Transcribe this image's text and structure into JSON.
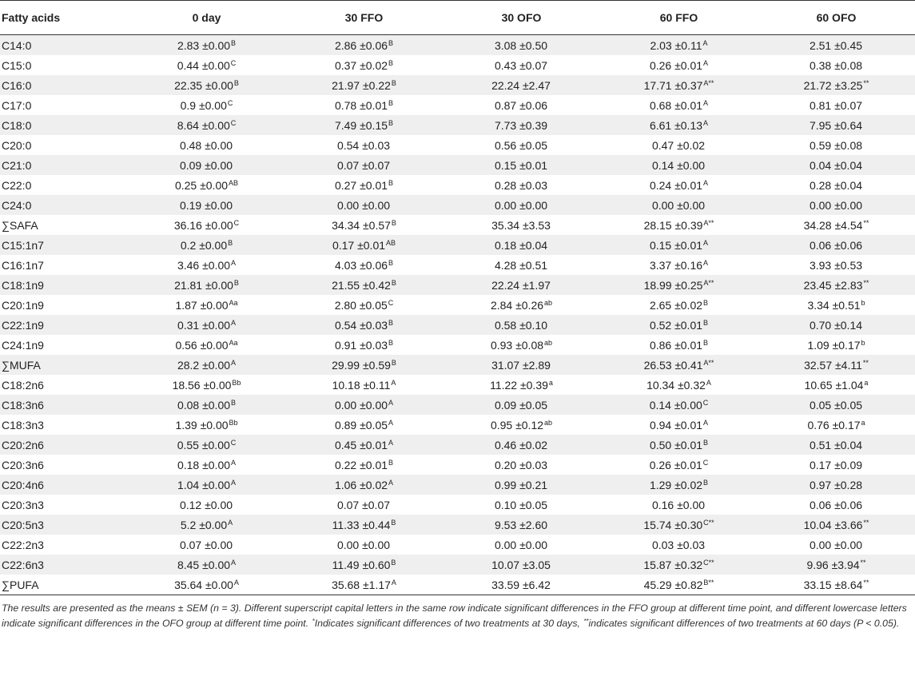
{
  "header": [
    "Fatty acids",
    "0 day",
    "30 FFO",
    "30 OFO",
    "60 FFO",
    "60 OFO"
  ],
  "rows": [
    {
      "name": "C14:0",
      "cells": [
        [
          "2.83 ±0.00",
          "B"
        ],
        [
          "2.86 ±0.06",
          "B"
        ],
        [
          "3.08 ±0.50",
          ""
        ],
        [
          "2.03 ±0.11",
          "A"
        ],
        [
          "2.51 ±0.45",
          ""
        ]
      ]
    },
    {
      "name": "C15:0",
      "cells": [
        [
          "0.44 ±0.00",
          "C"
        ],
        [
          "0.37 ±0.02",
          "B"
        ],
        [
          "0.43 ±0.07",
          ""
        ],
        [
          "0.26 ±0.01",
          "A"
        ],
        [
          "0.38 ±0.08",
          ""
        ]
      ]
    },
    {
      "name": "C16:0",
      "cells": [
        [
          "22.35 ±0.00",
          "B"
        ],
        [
          "21.97 ±0.22",
          "B"
        ],
        [
          "22.24 ±2.47",
          ""
        ],
        [
          "17.71 ±0.37",
          "A**"
        ],
        [
          "21.72 ±3.25",
          "**"
        ]
      ]
    },
    {
      "name": "C17:0",
      "cells": [
        [
          "0.9 ±0.00",
          "C"
        ],
        [
          "0.78 ±0.01",
          "B"
        ],
        [
          "0.87 ±0.06",
          ""
        ],
        [
          "0.68 ±0.01",
          "A"
        ],
        [
          "0.81 ±0.07",
          ""
        ]
      ]
    },
    {
      "name": "C18:0",
      "cells": [
        [
          "8.64 ±0.00",
          "C"
        ],
        [
          "7.49 ±0.15",
          "B"
        ],
        [
          "7.73 ±0.39",
          ""
        ],
        [
          "6.61 ±0.13",
          "A"
        ],
        [
          "7.95 ±0.64",
          ""
        ]
      ]
    },
    {
      "name": "C20:0",
      "cells": [
        [
          "0.48 ±0.00",
          ""
        ],
        [
          "0.54 ±0.03",
          ""
        ],
        [
          "0.56 ±0.05",
          ""
        ],
        [
          "0.47 ±0.02",
          ""
        ],
        [
          "0.59 ±0.08",
          ""
        ]
      ]
    },
    {
      "name": "C21:0",
      "cells": [
        [
          "0.09 ±0.00",
          ""
        ],
        [
          "0.07 ±0.07",
          ""
        ],
        [
          "0.15 ±0.01",
          ""
        ],
        [
          "0.14 ±0.00",
          ""
        ],
        [
          "0.04 ±0.04",
          ""
        ]
      ]
    },
    {
      "name": "C22:0",
      "cells": [
        [
          "0.25 ±0.00",
          "AB"
        ],
        [
          "0.27 ±0.01",
          "B"
        ],
        [
          "0.28 ±0.03",
          ""
        ],
        [
          "0.24 ±0.01",
          "A"
        ],
        [
          "0.28 ±0.04",
          ""
        ]
      ]
    },
    {
      "name": "C24:0",
      "cells": [
        [
          "0.19 ±0.00",
          ""
        ],
        [
          "0.00 ±0.00",
          ""
        ],
        [
          "0.00 ±0.00",
          ""
        ],
        [
          "0.00 ±0.00",
          ""
        ],
        [
          "0.00 ±0.00",
          ""
        ]
      ]
    },
    {
      "name": "∑SAFA",
      "cells": [
        [
          "36.16 ±0.00",
          "C"
        ],
        [
          "34.34 ±0.57",
          "B"
        ],
        [
          "35.34 ±3.53",
          ""
        ],
        [
          "28.15 ±0.39",
          "A**"
        ],
        [
          "34.28 ±4.54",
          "**"
        ]
      ]
    },
    {
      "name": "C15:1n7",
      "cells": [
        [
          "0.2 ±0.00",
          "B"
        ],
        [
          "0.17 ±0.01",
          "AB"
        ],
        [
          "0.18 ±0.04",
          ""
        ],
        [
          "0.15 ±0.01",
          "A"
        ],
        [
          "0.06 ±0.06",
          ""
        ]
      ]
    },
    {
      "name": "C16:1n7",
      "cells": [
        [
          "3.46 ±0.00",
          "A"
        ],
        [
          "4.03 ±0.06",
          "B"
        ],
        [
          "4.28 ±0.51",
          ""
        ],
        [
          "3.37 ±0.16",
          "A"
        ],
        [
          "3.93 ±0.53",
          ""
        ]
      ]
    },
    {
      "name": "C18:1n9",
      "cells": [
        [
          "21.81 ±0.00",
          "B"
        ],
        [
          "21.55 ±0.42",
          "B"
        ],
        [
          "22.24 ±1.97",
          ""
        ],
        [
          "18.99 ±0.25",
          "A**"
        ],
        [
          "23.45 ±2.83",
          "**"
        ]
      ]
    },
    {
      "name": "C20:1n9",
      "cells": [
        [
          "1.87 ±0.00",
          "Aa"
        ],
        [
          "2.80 ±0.05",
          "C"
        ],
        [
          "2.84 ±0.26",
          "ab"
        ],
        [
          "2.65 ±0.02",
          "B"
        ],
        [
          "3.34 ±0.51",
          "b"
        ]
      ]
    },
    {
      "name": "C22:1n9",
      "cells": [
        [
          "0.31 ±0.00",
          "A"
        ],
        [
          "0.54 ±0.03",
          "B"
        ],
        [
          "0.58 ±0.10",
          ""
        ],
        [
          "0.52 ±0.01",
          "B"
        ],
        [
          "0.70 ±0.14",
          ""
        ]
      ]
    },
    {
      "name": "C24:1n9",
      "cells": [
        [
          "0.56 ±0.00",
          "Aa"
        ],
        [
          "0.91 ±0.03",
          "B"
        ],
        [
          "0.93 ±0.08",
          "ab"
        ],
        [
          "0.86 ±0.01",
          "B"
        ],
        [
          "1.09 ±0.17",
          "b"
        ]
      ]
    },
    {
      "name": "∑MUFA",
      "cells": [
        [
          "28.2 ±0.00",
          "A"
        ],
        [
          "29.99 ±0.59",
          "B"
        ],
        [
          "31.07 ±2.89",
          ""
        ],
        [
          "26.53 ±0.41",
          "A**"
        ],
        [
          "32.57 ±4.11",
          "**"
        ]
      ]
    },
    {
      "name": "C18:2n6",
      "cells": [
        [
          "18.56 ±0.00",
          "Bb"
        ],
        [
          "10.18 ±0.11",
          "A"
        ],
        [
          "11.22 ±0.39",
          "a"
        ],
        [
          "10.34 ±0.32",
          "A"
        ],
        [
          "10.65 ±1.04",
          "a"
        ]
      ]
    },
    {
      "name": "C18:3n6",
      "cells": [
        [
          "0.08 ±0.00",
          "B"
        ],
        [
          "0.00 ±0.00",
          "A"
        ],
        [
          "0.09 ±0.05",
          ""
        ],
        [
          "0.14 ±0.00",
          "C"
        ],
        [
          "0.05 ±0.05",
          ""
        ]
      ]
    },
    {
      "name": "C18:3n3",
      "cells": [
        [
          "1.39 ±0.00",
          "Bb"
        ],
        [
          "0.89 ±0.05",
          "A"
        ],
        [
          "0.95 ±0.12",
          "ab"
        ],
        [
          "0.94 ±0.01",
          "A"
        ],
        [
          "0.76 ±0.17",
          "a"
        ]
      ]
    },
    {
      "name": "C20:2n6",
      "cells": [
        [
          "0.55 ±0.00",
          "C"
        ],
        [
          "0.45 ±0.01",
          "A"
        ],
        [
          "0.46 ±0.02",
          ""
        ],
        [
          "0.50 ±0.01",
          "B"
        ],
        [
          "0.51 ±0.04",
          ""
        ]
      ]
    },
    {
      "name": "C20:3n6",
      "cells": [
        [
          "0.18 ±0.00",
          "A"
        ],
        [
          "0.22 ±0.01",
          "B"
        ],
        [
          "0.20 ±0.03",
          ""
        ],
        [
          "0.26 ±0.01",
          "C"
        ],
        [
          "0.17 ±0.09",
          ""
        ]
      ]
    },
    {
      "name": "C20:4n6",
      "cells": [
        [
          "1.04 ±0.00",
          "A"
        ],
        [
          "1.06 ±0.02",
          "A"
        ],
        [
          "0.99 ±0.21",
          ""
        ],
        [
          "1.29 ±0.02",
          "B"
        ],
        [
          "0.97 ±0.28",
          ""
        ]
      ]
    },
    {
      "name": "C20:3n3",
      "cells": [
        [
          "0.12 ±0.00",
          ""
        ],
        [
          "0.07 ±0.07",
          ""
        ],
        [
          "0.10 ±0.05",
          ""
        ],
        [
          "0.16 ±0.00",
          ""
        ],
        [
          "0.06 ±0.06",
          ""
        ]
      ]
    },
    {
      "name": "C20:5n3",
      "cells": [
        [
          "5.2 ±0.00",
          "A"
        ],
        [
          "11.33 ±0.44",
          "B"
        ],
        [
          "9.53 ±2.60",
          ""
        ],
        [
          "15.74 ±0.30",
          "C**"
        ],
        [
          "10.04 ±3.66",
          "**"
        ]
      ]
    },
    {
      "name": "C22:2n3",
      "cells": [
        [
          "0.07 ±0.00",
          ""
        ],
        [
          "0.00 ±0.00",
          ""
        ],
        [
          "0.00 ±0.00",
          ""
        ],
        [
          "0.03 ±0.03",
          ""
        ],
        [
          "0.00 ±0.00",
          ""
        ]
      ]
    },
    {
      "name": "C22:6n3",
      "cells": [
        [
          "8.45 ±0.00",
          "A"
        ],
        [
          "11.49 ±0.60",
          "B"
        ],
        [
          "10.07 ±3.05",
          ""
        ],
        [
          "15.87 ±0.32",
          "C**"
        ],
        [
          "9.96 ±3.94",
          "**"
        ]
      ]
    },
    {
      "name": "∑PUFA",
      "cells": [
        [
          "35.64 ±0.00",
          "A"
        ],
        [
          "35.68 ±1.17",
          "A"
        ],
        [
          "33.59 ±6.42",
          ""
        ],
        [
          "45.29 ±0.82",
          "B**"
        ],
        [
          "33.15 ±8.64",
          "**"
        ]
      ]
    }
  ],
  "footnote": {
    "part1": "The results are presented as the means ± SEM (n = 3). Different superscript capital letters in the same row indicate significant differences in the FFO group at different time point, and different lowercase letters indicate significant differences in the OFO group at different time point.",
    "sup1": "*",
    "part2": "Indicates significant differences of two treatments at 30 days,",
    "sup2": "**",
    "part3": "indicates significant differences of two treatments at 60 days (P < 0.05)."
  }
}
